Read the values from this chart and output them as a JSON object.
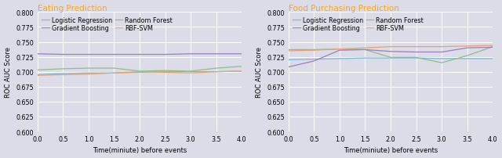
{
  "title1": "Eating Prediction",
  "title2": "Food Purchasing Prediction",
  "title_color": "#f5a623",
  "xlabel": "Time(miniute) before events",
  "ylabel": "ROC AUC Score",
  "x": [
    0.0,
    0.5,
    1.0,
    1.5,
    2.0,
    2.5,
    3.0,
    3.5,
    4.0
  ],
  "ylim": [
    0.6,
    0.8
  ],
  "yticks": [
    0.6,
    0.625,
    0.65,
    0.675,
    0.7,
    0.725,
    0.75,
    0.775,
    0.8
  ],
  "xticks": [
    0.0,
    0.5,
    1.0,
    1.5,
    2.0,
    2.5,
    3.0,
    3.5,
    4.0
  ],
  "eating": {
    "logistic_regression": [
      0.695,
      0.697,
      0.698,
      0.698,
      0.699,
      0.7,
      0.7,
      0.7,
      0.701
    ],
    "random_forest": [
      0.703,
      0.705,
      0.706,
      0.706,
      0.701,
      0.702,
      0.701,
      0.706,
      0.709
    ],
    "gradient_boosting": [
      0.73,
      0.729,
      0.729,
      0.729,
      0.729,
      0.729,
      0.73,
      0.73,
      0.73
    ],
    "rbf_svm": [
      0.694,
      0.695,
      0.696,
      0.698,
      0.7,
      0.699,
      0.698,
      0.7,
      0.701
    ]
  },
  "food": {
    "logistic_regression": [
      0.72,
      0.721,
      0.722,
      0.723,
      0.723,
      0.723,
      0.722,
      0.722,
      0.722
    ],
    "random_forest": [
      0.737,
      0.737,
      0.738,
      0.737,
      0.724,
      0.724,
      0.715,
      0.727,
      0.742
    ],
    "gradient_boosting": [
      0.708,
      0.718,
      0.736,
      0.737,
      0.734,
      0.733,
      0.733,
      0.74,
      0.741
    ],
    "rbf_svm": [
      0.735,
      0.736,
      0.738,
      0.74,
      0.742,
      0.742,
      0.742,
      0.743,
      0.744
    ]
  },
  "colors": {
    "logistic_regression": "#7eb8d4",
    "random_forest": "#8dbf7e",
    "gradient_boosting": "#9b7dbf",
    "rbf_svm": "#e8a070"
  },
  "legend_labels": {
    "logistic_regression": "Logistic Regression",
    "random_forest": "Random Forest",
    "gradient_boosting": "Gradient Boosting",
    "rbf_svm": "RBF-SVM"
  },
  "bg_color": "#dcdce8",
  "grid_color": "#ffffff",
  "linewidth": 0.9,
  "fontsize_title": 7.5,
  "fontsize_axis": 6.0,
  "fontsize_legend": 5.8,
  "fontsize_tick": 5.8
}
